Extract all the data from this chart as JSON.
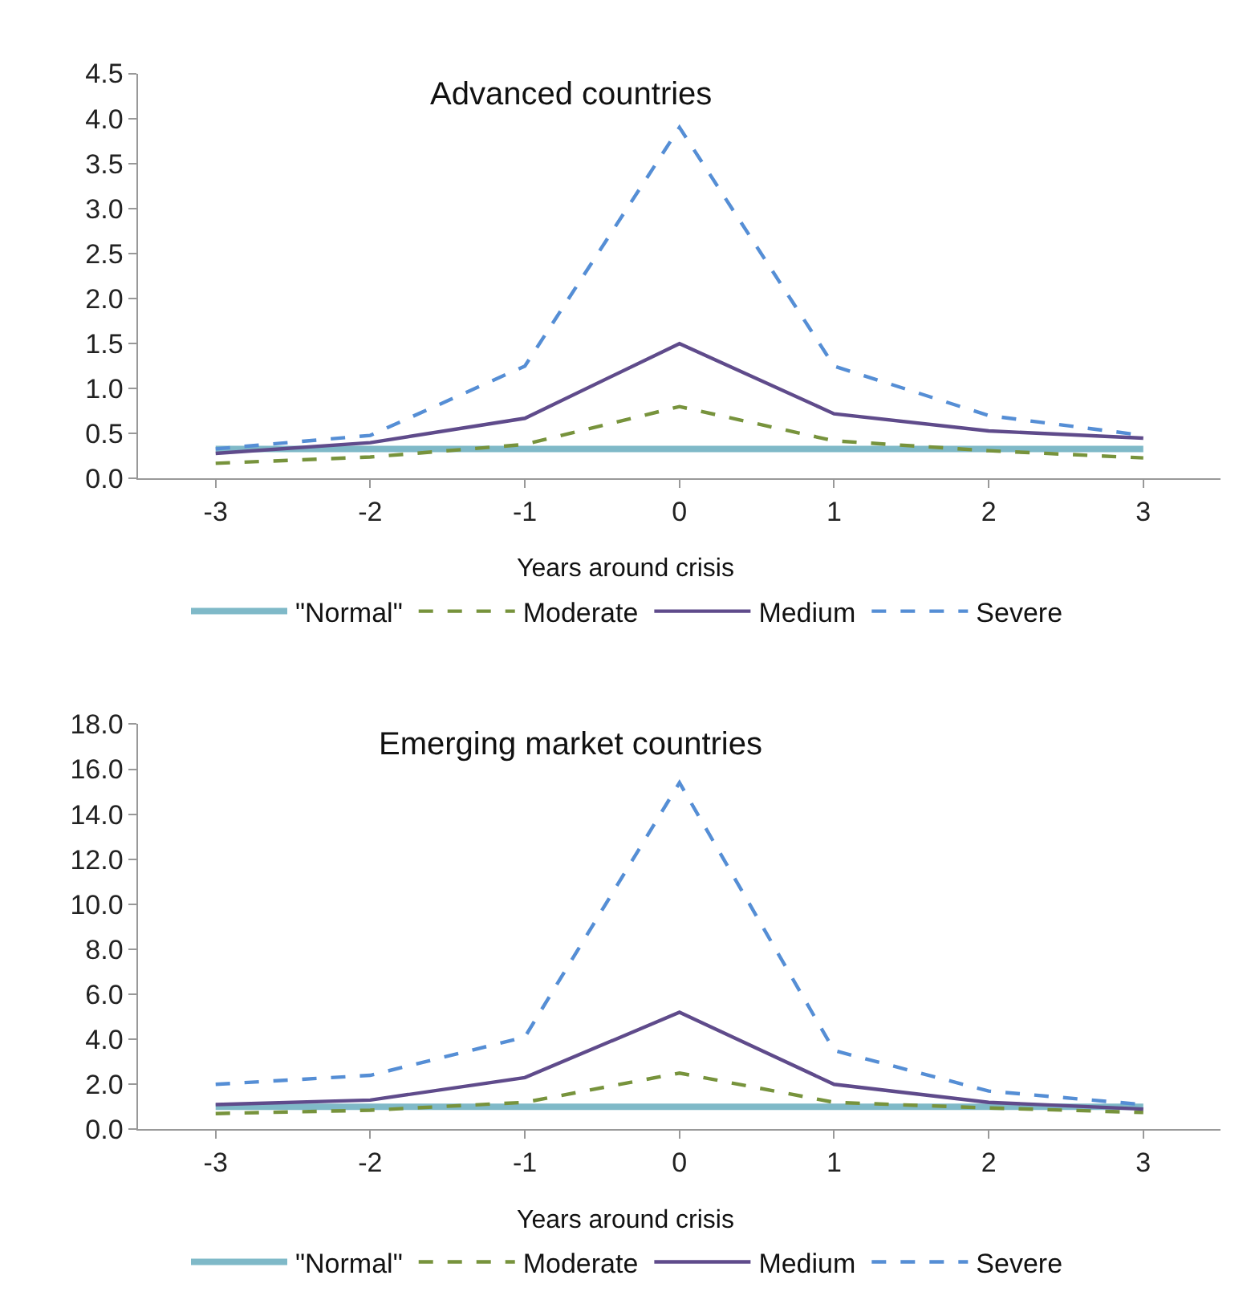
{
  "chart_data": [
    {
      "type": "line",
      "title": "Advanced countries",
      "xlabel": "Years around crisis",
      "categories": [
        "-3",
        "-2",
        "-1",
        "0",
        "1",
        "2",
        "3"
      ],
      "ylim": [
        0,
        4.5
      ],
      "yticks": [
        {
          "value": 0,
          "label": "0.0"
        },
        {
          "value": 0.5,
          "label": "0.5"
        },
        {
          "value": 1,
          "label": "1.0"
        },
        {
          "value": 1.5,
          "label": "1.5"
        },
        {
          "value": 2,
          "label": "2.0"
        },
        {
          "value": 2.5,
          "label": "2.5"
        },
        {
          "value": 3,
          "label": "3.0"
        },
        {
          "value": 3.5,
          "label": "3.5"
        },
        {
          "value": 4,
          "label": "4.0"
        },
        {
          "value": 4.5,
          "label": "4.5"
        }
      ],
      "grid": false,
      "legend": "bottom",
      "marker": "none",
      "series": [
        {
          "name": "\"Normal\"",
          "color": "#7fb9c8",
          "line_style": "solid",
          "values": [
            0.33,
            0.33,
            0.33,
            0.33,
            0.33,
            0.33,
            0.33
          ]
        },
        {
          "name": "Moderate",
          "color": "#77933c",
          "line_style": "dashed",
          "values": [
            0.17,
            0.24,
            0.38,
            0.8,
            0.42,
            0.31,
            0.23
          ]
        },
        {
          "name": "Medium",
          "color": "#5f4b8b",
          "line_style": "solid",
          "values": [
            0.28,
            0.4,
            0.67,
            1.5,
            0.72,
            0.53,
            0.45
          ]
        },
        {
          "name": "Severe",
          "color": "#558ed5",
          "line_style": "dashed",
          "values": [
            0.33,
            0.48,
            1.25,
            3.9,
            1.25,
            0.7,
            0.48
          ]
        }
      ]
    },
    {
      "type": "line",
      "title": "Emerging market countries",
      "xlabel": "Years around crisis",
      "categories": [
        "-3",
        "-2",
        "-1",
        "0",
        "1",
        "2",
        "3"
      ],
      "ylim": [
        0,
        18
      ],
      "yticks": [
        {
          "value": 0,
          "label": "0.0"
        },
        {
          "value": 2,
          "label": "2.0"
        },
        {
          "value": 4,
          "label": "4.0"
        },
        {
          "value": 6,
          "label": "6.0"
        },
        {
          "value": 8,
          "label": "8.0"
        },
        {
          "value": 10,
          "label": "10.0"
        },
        {
          "value": 12,
          "label": "12.0"
        },
        {
          "value": 14,
          "label": "14.0"
        },
        {
          "value": 16,
          "label": "16.0"
        },
        {
          "value": 18,
          "label": "18.0"
        }
      ],
      "grid": false,
      "legend": "bottom",
      "marker": "none",
      "series": [
        {
          "name": "\"Normal\"",
          "color": "#7fb9c8",
          "line_style": "solid",
          "values": [
            1.0,
            1.0,
            1.0,
            1.0,
            1.0,
            1.0,
            1.0
          ]
        },
        {
          "name": "Moderate",
          "color": "#77933c",
          "line_style": "dashed",
          "values": [
            0.7,
            0.85,
            1.2,
            2.5,
            1.2,
            0.95,
            0.75
          ]
        },
        {
          "name": "Medium",
          "color": "#5f4b8b",
          "line_style": "solid",
          "values": [
            1.1,
            1.3,
            2.3,
            5.2,
            2.0,
            1.2,
            0.9
          ]
        },
        {
          "name": "Severe",
          "color": "#558ed5",
          "line_style": "dashed",
          "values": [
            2.0,
            2.4,
            4.1,
            15.4,
            3.5,
            1.7,
            1.1
          ]
        }
      ]
    }
  ]
}
